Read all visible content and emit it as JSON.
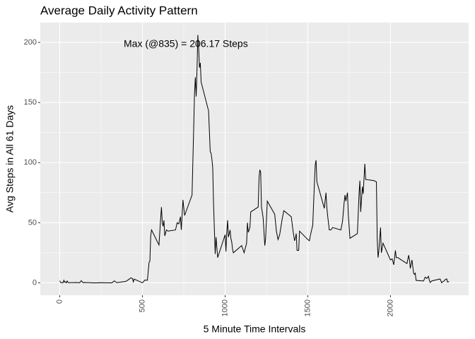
{
  "chart_data": {
    "type": "line",
    "title": "Average Daily Activity Pattern",
    "x_label": "5 Minute Time Intervals",
    "y_label": "Avg Steps in All 61 Days",
    "annotation": "Max (@835) = 206.17 Steps",
    "color": "#000000",
    "grid": true,
    "xlim": [
      -117.75,
      2472.75
    ],
    "ylim": [
      -10.31,
      216.48
    ],
    "xticks": [
      0,
      500,
      1000,
      1500,
      2000
    ],
    "yticks": [
      0,
      50,
      100,
      150,
      200
    ],
    "x": [
      0,
      5,
      10,
      15,
      20,
      25,
      30,
      35,
      40,
      45,
      50,
      55,
      100,
      110,
      120,
      130,
      140,
      150,
      200,
      215,
      230,
      245,
      300,
      315,
      330,
      345,
      400,
      415,
      430,
      440,
      445,
      450,
      500,
      515,
      530,
      540,
      545,
      550,
      555,
      600,
      610,
      615,
      620,
      625,
      630,
      635,
      645,
      655,
      700,
      710,
      720,
      730,
      735,
      745,
      755,
      800,
      810,
      815,
      820,
      825,
      830,
      835,
      840,
      845,
      850,
      855,
      900,
      910,
      915,
      920,
      925,
      930,
      935,
      940,
      945,
      955,
      1000,
      1005,
      1010,
      1015,
      1020,
      1030,
      1035,
      1040,
      1045,
      1050,
      1100,
      1115,
      1130,
      1135,
      1140,
      1145,
      1150,
      1155,
      1200,
      1205,
      1210,
      1215,
      1220,
      1230,
      1240,
      1245,
      1255,
      1300,
      1310,
      1320,
      1330,
      1345,
      1355,
      1400,
      1410,
      1420,
      1425,
      1430,
      1435,
      1445,
      1450,
      1500,
      1510,
      1515,
      1530,
      1540,
      1545,
      1550,
      1555,
      1600,
      1610,
      1615,
      1620,
      1630,
      1640,
      1645,
      1650,
      1700,
      1710,
      1720,
      1725,
      1730,
      1740,
      1745,
      1755,
      1800,
      1810,
      1815,
      1820,
      1830,
      1835,
      1845,
      1850,
      1900,
      1915,
      1920,
      1925,
      1930,
      1940,
      1945,
      1955,
      2000,
      2010,
      2020,
      2030,
      2035,
      2045,
      2055,
      2100,
      2110,
      2115,
      2120,
      2130,
      2140,
      2145,
      2150,
      2155,
      2200,
      2210,
      2220,
      2230,
      2235,
      2240,
      2250,
      2300,
      2310,
      2315,
      2325,
      2330,
      2340,
      2345,
      2355
    ],
    "values": [
      1.7,
      0.3,
      0.1,
      0.2,
      0.1,
      2.1,
      0.5,
      0.9,
      0,
      1.5,
      0.3,
      0.1,
      0.3,
      0.2,
      0,
      1.8,
      0.2,
      0.3,
      0,
      0,
      0,
      0.1,
      0,
      0,
      1.6,
      0.1,
      1.2,
      2.6,
      4.1,
      3.5,
      0.8,
      3.1,
      0,
      2.3,
      2.1,
      17,
      18,
      39,
      44,
      31.5,
      53,
      63,
      50,
      47,
      52,
      39,
      44,
      43,
      44,
      50,
      49,
      55,
      44,
      69,
      56,
      73,
      129,
      158,
      171,
      155,
      177,
      206.17,
      195,
      179,
      183,
      167,
      143,
      109,
      108,
      103,
      96,
      66,
      45,
      24,
      38,
      21,
      40,
      26,
      42,
      52,
      38,
      44,
      37,
      34,
      28,
      25,
      31,
      25,
      33,
      50,
      42,
      44,
      46,
      59,
      63,
      87,
      94,
      92,
      63,
      54,
      31,
      37,
      68,
      57,
      43,
      36,
      40,
      53,
      60,
      55,
      44,
      35,
      37,
      41,
      27,
      27,
      43,
      36,
      35,
      39,
      48,
      83,
      98,
      102,
      84,
      62,
      75,
      63,
      56,
      44,
      44,
      45,
      46,
      44,
      51,
      67,
      73,
      68,
      75,
      57,
      37,
      41,
      74,
      85,
      59,
      80,
      74,
      99,
      86,
      85,
      84,
      36,
      21,
      27,
      46,
      25,
      33,
      19,
      20,
      15,
      27,
      21,
      21,
      20,
      16,
      23,
      19,
      12,
      19,
      8,
      7,
      8,
      2,
      1.5,
      4.7,
      3.7,
      5.4,
      2.2,
      0.3,
      1.6,
      3.2,
      0,
      0.8,
      1.6,
      2.6,
      3.3,
      0.6,
      1.1
    ]
  }
}
